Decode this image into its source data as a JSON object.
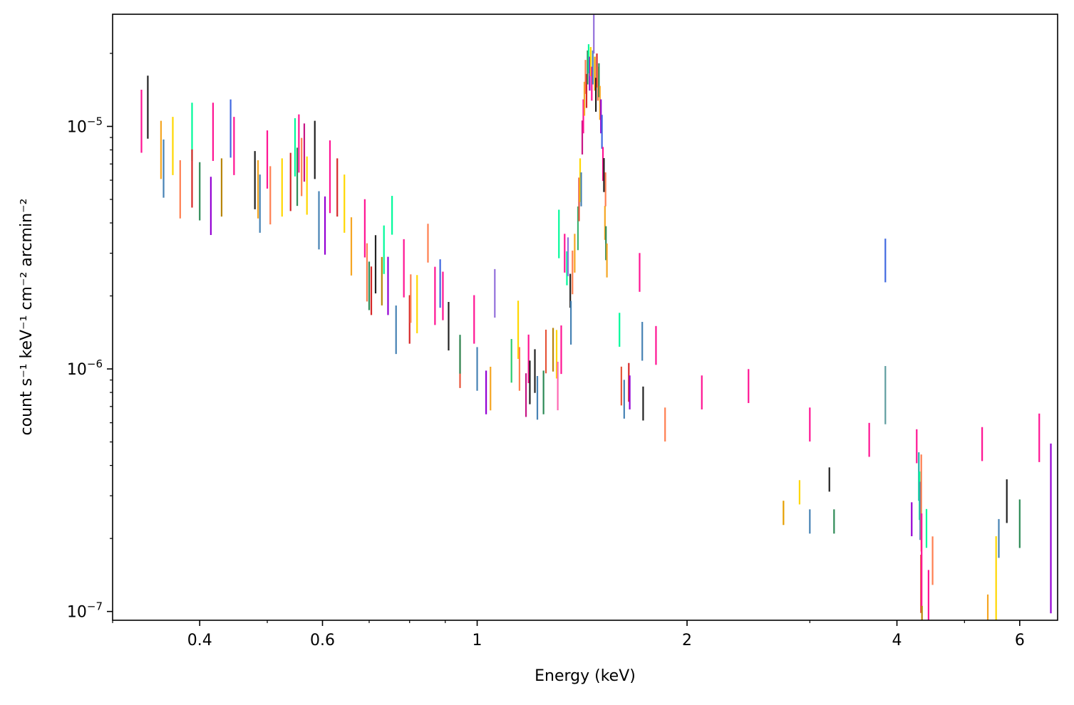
{
  "chart_data": {
    "type": "scatter",
    "xlabel": "Energy (keV)",
    "ylabel": "count s⁻¹ keV⁻¹ cm⁻² arcmin⁻²",
    "xscale": "log",
    "yscale": "log",
    "xlim": [
      0.3,
      6.8
    ],
    "ylim": [
      9.2e-08,
      2.9e-05
    ],
    "x_ticks": [
      {
        "value": 0.4,
        "label": "0.4"
      },
      {
        "value": 0.6,
        "label": "0.6"
      },
      {
        "value": 1,
        "label": "1"
      },
      {
        "value": 2,
        "label": "2"
      },
      {
        "value": 4,
        "label": "4"
      },
      {
        "value": 6,
        "label": "6"
      }
    ],
    "y_ticks": [
      {
        "value": 1e-07,
        "base": "10",
        "exp": "−7"
      },
      {
        "value": 1e-06,
        "base": "10",
        "exp": "−6"
      },
      {
        "value": 1e-05,
        "base": "10",
        "exp": "−5"
      }
    ],
    "grid": false,
    "legend": "none",
    "marker": "vertical error bars, no caps",
    "palette": [
      "#e7298a",
      "#ff1493",
      "#222222",
      "#e69f00",
      "#f5a623",
      "#ffd700",
      "#f4e01e",
      "#ff7f50",
      "#e6553a",
      "#d62728",
      "#c71585",
      "#9400d3",
      "#8a2be2",
      "#9370db",
      "#4169e1",
      "#4682b4",
      "#5f9ea0",
      "#20b2aa",
      "#2ecc71",
      "#00fa9a",
      "#3cb371",
      "#2e8b57",
      "#6b8e23",
      "#b8860b",
      "#00ced1",
      "#ff69b4"
    ],
    "points": [
      {
        "x": 0.33,
        "y": 1.05e-05,
        "dy": 0.13,
        "color": "#ff1493"
      },
      {
        "x": 0.337,
        "y": 1.2e-05,
        "dy": 0.13,
        "color": "#222222"
      },
      {
        "x": 0.352,
        "y": 8e-06,
        "dy": 0.12,
        "color": "#f5a623"
      },
      {
        "x": 0.355,
        "y": 6.7e-06,
        "dy": 0.12,
        "color": "#4682b4"
      },
      {
        "x": 0.366,
        "y": 8.3e-06,
        "dy": 0.12,
        "color": "#ffd700"
      },
      {
        "x": 0.375,
        "y": 5.5e-06,
        "dy": 0.12,
        "color": "#ff7f50"
      },
      {
        "x": 0.39,
        "y": 9.5e-06,
        "dy": 0.12,
        "color": "#00fa9a"
      },
      {
        "x": 0.39,
        "y": 6.1e-06,
        "dy": 0.12,
        "color": "#d62728"
      },
      {
        "x": 0.4,
        "y": 5.4e-06,
        "dy": 0.12,
        "color": "#2e8b57"
      },
      {
        "x": 0.415,
        "y": 4.7e-06,
        "dy": 0.12,
        "color": "#9400d3"
      },
      {
        "x": 0.418,
        "y": 9.5e-06,
        "dy": 0.12,
        "color": "#ff1493"
      },
      {
        "x": 0.43,
        "y": 5.6e-06,
        "dy": 0.12,
        "color": "#b8860b"
      },
      {
        "x": 0.443,
        "y": 9.8e-06,
        "dy": 0.12,
        "color": "#4169e1"
      },
      {
        "x": 0.448,
        "y": 8.3e-06,
        "dy": 0.12,
        "color": "#ff1493"
      },
      {
        "x": 0.48,
        "y": 6e-06,
        "dy": 0.12,
        "color": "#222222"
      },
      {
        "x": 0.485,
        "y": 5.5e-06,
        "dy": 0.12,
        "color": "#f5a623"
      },
      {
        "x": 0.488,
        "y": 4.8e-06,
        "dy": 0.12,
        "color": "#4682b4"
      },
      {
        "x": 0.5,
        "y": 7.3e-06,
        "dy": 0.12,
        "color": "#ff1493"
      },
      {
        "x": 0.505,
        "y": 5.2e-06,
        "dy": 0.12,
        "color": "#ff7f50"
      },
      {
        "x": 0.525,
        "y": 5.6e-06,
        "dy": 0.12,
        "color": "#ffd700"
      },
      {
        "x": 0.54,
        "y": 5.9e-06,
        "dy": 0.12,
        "color": "#d62728"
      },
      {
        "x": 0.548,
        "y": 8.2e-06,
        "dy": 0.12,
        "color": "#00fa9a"
      },
      {
        "x": 0.552,
        "y": 6.2e-06,
        "dy": 0.12,
        "color": "#2e8b57"
      },
      {
        "x": 0.555,
        "y": 8.5e-06,
        "dy": 0.12,
        "color": "#ff1493"
      },
      {
        "x": 0.56,
        "y": 6.8e-06,
        "dy": 0.12,
        "color": "#ff7f50"
      },
      {
        "x": 0.565,
        "y": 7.8e-06,
        "dy": 0.12,
        "color": "#c71585"
      },
      {
        "x": 0.57,
        "y": 5.7e-06,
        "dy": 0.12,
        "color": "#ffd700"
      },
      {
        "x": 0.585,
        "y": 8e-06,
        "dy": 0.12,
        "color": "#222222"
      },
      {
        "x": 0.593,
        "y": 4.1e-06,
        "dy": 0.12,
        "color": "#4682b4"
      },
      {
        "x": 0.605,
        "y": 3.9e-06,
        "dy": 0.12,
        "color": "#9400d3"
      },
      {
        "x": 0.615,
        "y": 6.2e-06,
        "dy": 0.15,
        "color": "#ff1493"
      },
      {
        "x": 0.63,
        "y": 5.6e-06,
        "dy": 0.12,
        "color": "#d62728"
      },
      {
        "x": 0.645,
        "y": 4.8e-06,
        "dy": 0.12,
        "color": "#ffd700"
      },
      {
        "x": 0.66,
        "y": 3.2e-06,
        "dy": 0.12,
        "color": "#f5a623"
      },
      {
        "x": 0.69,
        "y": 3.8e-06,
        "dy": 0.12,
        "color": "#ff1493"
      },
      {
        "x": 0.695,
        "y": 2.5e-06,
        "dy": 0.12,
        "color": "#ff7f50"
      },
      {
        "x": 0.7,
        "y": 2.2e-06,
        "dy": 0.1,
        "color": "#2e8b57"
      },
      {
        "x": 0.705,
        "y": 2.1e-06,
        "dy": 0.1,
        "color": "#d62728"
      },
      {
        "x": 0.715,
        "y": 2.7e-06,
        "dy": 0.12,
        "color": "#222222"
      },
      {
        "x": 0.73,
        "y": 2.3e-06,
        "dy": 0.1,
        "color": "#b8860b"
      },
      {
        "x": 0.735,
        "y": 3.1e-06,
        "dy": 0.1,
        "color": "#00fa9a"
      },
      {
        "x": 0.745,
        "y": 2.2e-06,
        "dy": 0.12,
        "color": "#9400d3"
      },
      {
        "x": 0.755,
        "y": 4.3e-06,
        "dy": 0.08,
        "color": "#00fa9a"
      },
      {
        "x": 0.765,
        "y": 1.45e-06,
        "dy": 0.1,
        "color": "#4682b4"
      },
      {
        "x": 0.785,
        "y": 2.6e-06,
        "dy": 0.12,
        "color": "#ff1493"
      },
      {
        "x": 0.8,
        "y": 1.6e-06,
        "dy": 0.1,
        "color": "#d62728"
      },
      {
        "x": 0.803,
        "y": 1.95e-06,
        "dy": 0.1,
        "color": "#ff7f50"
      },
      {
        "x": 0.82,
        "y": 1.85e-06,
        "dy": 0.12,
        "color": "#ffd700"
      },
      {
        "x": 0.85,
        "y": 3.3e-06,
        "dy": 0.08,
        "color": "#ff7f50"
      },
      {
        "x": 0.87,
        "y": 2e-06,
        "dy": 0.12,
        "color": "#ff1493"
      },
      {
        "x": 0.885,
        "y": 2.25e-06,
        "dy": 0.1,
        "color": "#4169e1"
      },
      {
        "x": 0.893,
        "y": 2e-06,
        "dy": 0.1,
        "color": "#ff1493"
      },
      {
        "x": 0.91,
        "y": 1.5e-06,
        "dy": 0.1,
        "color": "#222222"
      },
      {
        "x": 0.945,
        "y": 1.05e-06,
        "dy": 0.1,
        "color": "#e6553a"
      },
      {
        "x": 0.945,
        "y": 1.15e-06,
        "dy": 0.08,
        "color": "#2e8b57"
      },
      {
        "x": 0.99,
        "y": 1.6e-06,
        "dy": 0.1,
        "color": "#ff1493"
      },
      {
        "x": 1.0,
        "y": 1e-06,
        "dy": 0.09,
        "color": "#4682b4"
      },
      {
        "x": 1.03,
        "y": 8e-07,
        "dy": 0.09,
        "color": "#9400d3"
      },
      {
        "x": 1.045,
        "y": 8.3e-07,
        "dy": 0.09,
        "color": "#f5a623"
      },
      {
        "x": 1.06,
        "y": 2.05e-06,
        "dy": 0.1,
        "color": "#9370db"
      },
      {
        "x": 1.12,
        "y": 1.08e-06,
        "dy": 0.09,
        "color": "#2ecc71"
      },
      {
        "x": 1.145,
        "y": 1.45e-06,
        "dy": 0.12,
        "color": "#ffd700"
      },
      {
        "x": 1.15,
        "y": 1e-06,
        "dy": 0.09,
        "color": "#ff7f50"
      },
      {
        "x": 1.175,
        "y": 7.8e-07,
        "dy": 0.09,
        "color": "#c71585"
      },
      {
        "x": 1.185,
        "y": 1.1e-06,
        "dy": 0.1,
        "color": "#ff1493"
      },
      {
        "x": 1.19,
        "y": 8.8e-07,
        "dy": 0.09,
        "color": "#222222"
      },
      {
        "x": 1.21,
        "y": 9.8e-07,
        "dy": 0.09,
        "color": "#222222"
      },
      {
        "x": 1.22,
        "y": 7.6e-07,
        "dy": 0.09,
        "color": "#4682b4"
      },
      {
        "x": 1.245,
        "y": 8e-07,
        "dy": 0.09,
        "color": "#2e8b57"
      },
      {
        "x": 1.255,
        "y": 1.18e-06,
        "dy": 0.09,
        "color": "#e6553a"
      },
      {
        "x": 1.285,
        "y": 1.2e-06,
        "dy": 0.09,
        "color": "#b8860b"
      },
      {
        "x": 1.3,
        "y": 1.15e-06,
        "dy": 0.1,
        "color": "#ffd700"
      },
      {
        "x": 1.305,
        "y": 8.5e-07,
        "dy": 0.1,
        "color": "#ff69b4"
      },
      {
        "x": 1.31,
        "y": 3.6e-06,
        "dy": 0.1,
        "color": "#00fa9a"
      },
      {
        "x": 1.32,
        "y": 1.2e-06,
        "dy": 0.1,
        "color": "#ff1493"
      },
      {
        "x": 1.335,
        "y": 3e-06,
        "dy": 0.08,
        "color": "#ff1493"
      },
      {
        "x": 1.345,
        "y": 2.6e-06,
        "dy": 0.07,
        "color": "#00fa9a"
      },
      {
        "x": 1.35,
        "y": 2.9e-06,
        "dy": 0.08,
        "color": "#9370db"
      },
      {
        "x": 1.36,
        "y": 2.1e-06,
        "dy": 0.07,
        "color": "#222222"
      },
      {
        "x": 1.363,
        "y": 1.55e-06,
        "dy": 0.09,
        "color": "#4682b4"
      },
      {
        "x": 1.37,
        "y": 2.5e-06,
        "dy": 0.09,
        "color": "#ff7f50"
      },
      {
        "x": 1.38,
        "y": 3e-06,
        "dy": 0.08,
        "color": "#f5a623"
      },
      {
        "x": 1.395,
        "y": 3.8e-06,
        "dy": 0.09,
        "color": "#3cb371"
      },
      {
        "x": 1.4,
        "y": 5e-06,
        "dy": 0.09,
        "color": "#e6553a"
      },
      {
        "x": 1.405,
        "y": 6e-06,
        "dy": 0.09,
        "color": "#ffd700"
      },
      {
        "x": 1.41,
        "y": 5.5e-06,
        "dy": 0.07,
        "color": "#4682b4"
      },
      {
        "x": 1.415,
        "y": 9e-06,
        "dy": 0.07,
        "color": "#c71585"
      },
      {
        "x": 1.42,
        "y": 1.1e-05,
        "dy": 0.07,
        "color": "#ff1493"
      },
      {
        "x": 1.425,
        "y": 1.3e-05,
        "dy": 0.07,
        "color": "#f5a623"
      },
      {
        "x": 1.43,
        "y": 1.6e-05,
        "dy": 0.07,
        "color": "#ff7f50"
      },
      {
        "x": 1.435,
        "y": 1.4e-05,
        "dy": 0.07,
        "color": "#d62728"
      },
      {
        "x": 1.44,
        "y": 1.75e-05,
        "dy": 0.07,
        "color": "#2e8b57"
      },
      {
        "x": 1.445,
        "y": 1.9e-05,
        "dy": 0.06,
        "color": "#00fa9a"
      },
      {
        "x": 1.45,
        "y": 1.65e-05,
        "dy": 0.07,
        "color": "#9400d3"
      },
      {
        "x": 1.455,
        "y": 1.85e-05,
        "dy": 0.06,
        "color": "#ffd700"
      },
      {
        "x": 1.46,
        "y": 1.5e-05,
        "dy": 0.07,
        "color": "#ff1493"
      },
      {
        "x": 1.465,
        "y": 1.75e-05,
        "dy": 0.07,
        "color": "#4682b4"
      },
      {
        "x": 1.47,
        "y": 2.4e-05,
        "dy": 0.08,
        "color": "#9370db"
      },
      {
        "x": 1.475,
        "y": 1.65e-05,
        "dy": 0.07,
        "color": "#e69f00"
      },
      {
        "x": 1.48,
        "y": 1.35e-05,
        "dy": 0.07,
        "color": "#222222"
      },
      {
        "x": 1.485,
        "y": 1.7e-05,
        "dy": 0.07,
        "color": "#d62728"
      },
      {
        "x": 1.49,
        "y": 1.5e-05,
        "dy": 0.07,
        "color": "#ff7f50"
      },
      {
        "x": 1.495,
        "y": 1.55e-05,
        "dy": 0.07,
        "color": "#2e8b57"
      },
      {
        "x": 1.5,
        "y": 1.25e-05,
        "dy": 0.07,
        "color": "#f5a623"
      },
      {
        "x": 1.505,
        "y": 1.1e-05,
        "dy": 0.07,
        "color": "#9400d3"
      },
      {
        "x": 1.51,
        "y": 9.5e-06,
        "dy": 0.07,
        "color": "#4169e1"
      },
      {
        "x": 1.515,
        "y": 7e-06,
        "dy": 0.07,
        "color": "#ff1493"
      },
      {
        "x": 1.52,
        "y": 6.3e-06,
        "dy": 0.07,
        "color": "#222222"
      },
      {
        "x": 1.525,
        "y": 4e-06,
        "dy": 0.07,
        "color": "#f5a623"
      },
      {
        "x": 1.528,
        "y": 5.5e-06,
        "dy": 0.07,
        "color": "#ff7f50"
      },
      {
        "x": 1.53,
        "y": 3.3e-06,
        "dy": 0.07,
        "color": "#2e8b57"
      },
      {
        "x": 1.535,
        "y": 2.8e-06,
        "dy": 0.07,
        "color": "#f5a623"
      },
      {
        "x": 1.6,
        "y": 1.45e-06,
        "dy": 0.07,
        "color": "#00fa9a"
      },
      {
        "x": 1.61,
        "y": 8.5e-07,
        "dy": 0.08,
        "color": "#e6553a"
      },
      {
        "x": 1.625,
        "y": 7.5e-07,
        "dy": 0.08,
        "color": "#4682b4"
      },
      {
        "x": 1.65,
        "y": 8.8e-07,
        "dy": 0.08,
        "color": "#d62728"
      },
      {
        "x": 1.655,
        "y": 8e-07,
        "dy": 0.07,
        "color": "#9400d3"
      },
      {
        "x": 1.71,
        "y": 2.5e-06,
        "dy": 0.08,
        "color": "#ff1493"
      },
      {
        "x": 1.725,
        "y": 1.3e-06,
        "dy": 0.08,
        "color": "#4682b4"
      },
      {
        "x": 1.73,
        "y": 7.2e-07,
        "dy": 0.07,
        "color": "#222222"
      },
      {
        "x": 1.805,
        "y": 1.25e-06,
        "dy": 0.08,
        "color": "#ff1493"
      },
      {
        "x": 1.86,
        "y": 5.9e-07,
        "dy": 0.07,
        "color": "#ff7f50"
      },
      {
        "x": 2.1,
        "y": 8e-07,
        "dy": 0.07,
        "color": "#ff1493"
      },
      {
        "x": 2.45,
        "y": 8.5e-07,
        "dy": 0.07,
        "color": "#ff1493"
      },
      {
        "x": 2.75,
        "y": 2.55e-07,
        "dy": 0.05,
        "color": "#e69f00"
      },
      {
        "x": 2.9,
        "y": 3.1e-07,
        "dy": 0.05,
        "color": "#ffd700"
      },
      {
        "x": 3.0,
        "y": 5.9e-07,
        "dy": 0.07,
        "color": "#ff1493"
      },
      {
        "x": 3.0,
        "y": 2.35e-07,
        "dy": 0.05,
        "color": "#4682b4"
      },
      {
        "x": 3.2,
        "y": 3.5e-07,
        "dy": 0.05,
        "color": "#222222"
      },
      {
        "x": 3.25,
        "y": 2.35e-07,
        "dy": 0.05,
        "color": "#2e8b57"
      },
      {
        "x": 3.65,
        "y": 5.1e-07,
        "dy": 0.07,
        "color": "#ff1493"
      },
      {
        "x": 3.85,
        "y": 2.8e-06,
        "dy": 0.09,
        "color": "#4169e1"
      },
      {
        "x": 3.85,
        "y": 7.8e-07,
        "dy": 0.12,
        "color": "#5f9ea0"
      },
      {
        "x": 4.2,
        "y": 2.4e-07,
        "dy": 0.07,
        "color": "#9400d3"
      },
      {
        "x": 4.27,
        "y": 4.8e-07,
        "dy": 0.07,
        "color": "#ff1493"
      },
      {
        "x": 4.3,
        "y": 3.6e-07,
        "dy": 0.1,
        "color": "#20b2aa"
      },
      {
        "x": 4.31,
        "y": 3e-07,
        "dy": 0.1,
        "color": "#00fa9a"
      },
      {
        "x": 4.32,
        "y": 2.6e-07,
        "dy": 0.12,
        "color": "#4682b4"
      },
      {
        "x": 4.33,
        "y": 1.3e-07,
        "dy": 0.12,
        "color": "#e6553a"
      },
      {
        "x": 4.335,
        "y": 2.8e-07,
        "dy": 0.2,
        "color": "#ff7f50"
      },
      {
        "x": 4.34,
        "y": 1.6e-07,
        "dy": 0.2,
        "color": "#ff1493"
      },
      {
        "x": 4.345,
        "y": 9.4e-08,
        "dy": 0.05,
        "color": "#b8860b"
      },
      {
        "x": 4.41,
        "y": 2.2e-07,
        "dy": 0.08,
        "color": "#00fa9a"
      },
      {
        "x": 4.44,
        "y": 1.05e-07,
        "dy": 0.15,
        "color": "#ff1493"
      },
      {
        "x": 4.5,
        "y": 1.62e-07,
        "dy": 0.1,
        "color": "#ff7f50"
      },
      {
        "x": 5.3,
        "y": 4.9e-07,
        "dy": 0.07,
        "color": "#ff1493"
      },
      {
        "x": 5.4,
        "y": 1e-07,
        "dy": 0.07,
        "color": "#f5a623"
      },
      {
        "x": 5.55,
        "y": 1.35e-07,
        "dy": 0.18,
        "color": "#ffd700"
      },
      {
        "x": 5.6,
        "y": 2e-07,
        "dy": 0.08,
        "color": "#4682b4"
      },
      {
        "x": 5.75,
        "y": 2.85e-07,
        "dy": 0.09,
        "color": "#222222"
      },
      {
        "x": 6.0,
        "y": 2.3e-07,
        "dy": 0.1,
        "color": "#2e8b57"
      },
      {
        "x": 6.4,
        "y": 5.2e-07,
        "dy": 0.1,
        "color": "#ff1493"
      },
      {
        "x": 6.65,
        "y": 2.2e-07,
        "dy": 0.35,
        "color": "#9400d3"
      }
    ]
  }
}
